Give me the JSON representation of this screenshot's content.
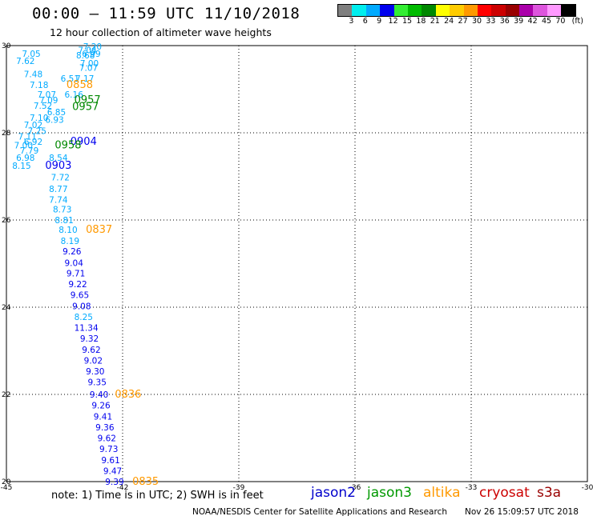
{
  "title": "00:00 – 11:59 UTC 11/10/2018",
  "subtitle": "12 hour collection of altimeter wave heights",
  "legend": {
    "colors": [
      "#7f7f7f",
      "#00eeee",
      "#00aaff",
      "#0000ee",
      "#33ee33",
      "#00bb00",
      "#008800",
      "#ffff00",
      "#ffcc00",
      "#ff9900",
      "#ff0000",
      "#cc0000",
      "#990000",
      "#aa00aa",
      "#dd55dd",
      "#ff99ff",
      "#000000"
    ],
    "labels": [
      "3",
      "6",
      "9",
      "12",
      "15",
      "18",
      "21",
      "24",
      "27",
      "30",
      "33",
      "36",
      "39",
      "42",
      "45",
      "70"
    ],
    "unit": "(ft)"
  },
  "axes": {
    "lon_ticks": [
      "-45",
      "-42",
      "-39",
      "-36",
      "-33",
      "-30"
    ],
    "lat_ticks": [
      "30",
      "28",
      "26",
      "24",
      "22",
      "20"
    ]
  },
  "observations": [
    {
      "text": "7.20",
      "lon": -43.02,
      "lat": 29.98,
      "color": "#00aaff"
    },
    {
      "text": "7.04",
      "lon": -43.15,
      "lat": 29.9,
      "color": "#00aaff"
    },
    {
      "text": "6.99",
      "lon": -43.05,
      "lat": 29.82,
      "color": "#00aaff"
    },
    {
      "text": "7.05",
      "lon": -44.6,
      "lat": 29.82,
      "color": "#00aaff"
    },
    {
      "text": "8.68",
      "lon": -43.2,
      "lat": 29.78,
      "color": "#00aaff"
    },
    {
      "text": "7.00",
      "lon": -43.1,
      "lat": 29.6,
      "color": "#00aaff"
    },
    {
      "text": "7.62",
      "lon": -44.75,
      "lat": 29.65,
      "color": "#00aaff"
    },
    {
      "text": "7.07",
      "lon": -43.12,
      "lat": 29.5,
      "color": "#00aaff"
    },
    {
      "text": "7.48",
      "lon": -44.55,
      "lat": 29.35,
      "color": "#00aaff"
    },
    {
      "text": "7.17",
      "lon": -43.22,
      "lat": 29.25,
      "color": "#00aaff"
    },
    {
      "text": "6.51",
      "lon": -43.6,
      "lat": 29.25,
      "color": "#00aaff"
    },
    {
      "text": "7.18",
      "lon": -44.4,
      "lat": 29.1,
      "color": "#00aaff"
    },
    {
      "text": "0858",
      "lon": -43.45,
      "lat": 29.1,
      "color": "#ff9900"
    },
    {
      "text": "7.07",
      "lon": -44.2,
      "lat": 28.88,
      "color": "#00aaff"
    },
    {
      "text": "6.16",
      "lon": -43.5,
      "lat": 28.88,
      "color": "#00aaff"
    },
    {
      "text": "7.09",
      "lon": -44.15,
      "lat": 28.75,
      "color": "#00aaff"
    },
    {
      "text": "0957",
      "lon": -43.25,
      "lat": 28.75,
      "color": "#008800"
    },
    {
      "text": "7.52",
      "lon": -44.3,
      "lat": 28.62,
      "color": "#00aaff"
    },
    {
      "text": "0957",
      "lon": -43.3,
      "lat": 28.6,
      "color": "#008800"
    },
    {
      "text": "6.85",
      "lon": -43.95,
      "lat": 28.48,
      "color": "#00aaff"
    },
    {
      "text": "7.10",
      "lon": -44.4,
      "lat": 28.35,
      "color": "#00aaff"
    },
    {
      "text": "6.93",
      "lon": -44.0,
      "lat": 28.3,
      "color": "#00aaff"
    },
    {
      "text": "7.02",
      "lon": -44.55,
      "lat": 28.18,
      "color": "#00aaff"
    },
    {
      "text": "7.25",
      "lon": -44.45,
      "lat": 28.05,
      "color": "#00aaff"
    },
    {
      "text": "7.11",
      "lon": -44.7,
      "lat": 27.92,
      "color": "#00aaff"
    },
    {
      "text": "6.92",
      "lon": -44.55,
      "lat": 27.8,
      "color": "#00aaff"
    },
    {
      "text": "0904",
      "lon": -43.35,
      "lat": 27.8,
      "color": "#0000ee"
    },
    {
      "text": "7.00",
      "lon": -44.8,
      "lat": 27.72,
      "color": "#00aaff"
    },
    {
      "text": "0958",
      "lon": -43.75,
      "lat": 27.72,
      "color": "#008800"
    },
    {
      "text": "7.79",
      "lon": -44.65,
      "lat": 27.6,
      "color": "#00aaff"
    },
    {
      "text": "6.98",
      "lon": -44.75,
      "lat": 27.43,
      "color": "#00aaff"
    },
    {
      "text": "8.54",
      "lon": -43.9,
      "lat": 27.43,
      "color": "#00aaff"
    },
    {
      "text": "8.15",
      "lon": -44.85,
      "lat": 27.25,
      "color": "#00aaff"
    },
    {
      "text": "0903",
      "lon": -44.0,
      "lat": 27.25,
      "color": "#0000ee"
    },
    {
      "text": "7.72",
      "lon": -43.85,
      "lat": 26.98,
      "color": "#00aaff"
    },
    {
      "text": "8.77",
      "lon": -43.9,
      "lat": 26.72,
      "color": "#00aaff"
    },
    {
      "text": "7.74",
      "lon": -43.9,
      "lat": 26.47,
      "color": "#00aaff"
    },
    {
      "text": "8.73",
      "lon": -43.8,
      "lat": 26.25,
      "color": "#00aaff"
    },
    {
      "text": "8.81",
      "lon": -43.75,
      "lat": 26.0,
      "color": "#00aaff"
    },
    {
      "text": "8.10",
      "lon": -43.65,
      "lat": 25.78,
      "color": "#00aaff"
    },
    {
      "text": "0837",
      "lon": -42.95,
      "lat": 25.78,
      "color": "#ff9900"
    },
    {
      "text": "8.19",
      "lon": -43.6,
      "lat": 25.52,
      "color": "#00aaff"
    },
    {
      "text": "9.26",
      "lon": -43.55,
      "lat": 25.28,
      "color": "#0000ee"
    },
    {
      "text": "9.04",
      "lon": -43.5,
      "lat": 25.02,
      "color": "#0000ee"
    },
    {
      "text": "9.71",
      "lon": -43.45,
      "lat": 24.78,
      "color": "#0000ee"
    },
    {
      "text": "9.22",
      "lon": -43.4,
      "lat": 24.53,
      "color": "#0000ee"
    },
    {
      "text": "9.65",
      "lon": -43.35,
      "lat": 24.28,
      "color": "#0000ee"
    },
    {
      "text": "9.08",
      "lon": -43.3,
      "lat": 24.03,
      "color": "#0000ee"
    },
    {
      "text": "8.25",
      "lon": -43.25,
      "lat": 23.78,
      "color": "#00aaff"
    },
    {
      "text": "11.34",
      "lon": -43.25,
      "lat": 23.53,
      "color": "#0000ee"
    },
    {
      "text": "9.32",
      "lon": -43.1,
      "lat": 23.28,
      "color": "#0000ee"
    },
    {
      "text": "9.62",
      "lon": -43.05,
      "lat": 23.03,
      "color": "#0000ee"
    },
    {
      "text": "9.02",
      "lon": -43.0,
      "lat": 22.78,
      "color": "#0000ee"
    },
    {
      "text": "9.30",
      "lon": -42.95,
      "lat": 22.53,
      "color": "#0000ee"
    },
    {
      "text": "9.35",
      "lon": -42.9,
      "lat": 22.28,
      "color": "#0000ee"
    },
    {
      "text": "9.40",
      "lon": -42.85,
      "lat": 22.0,
      "color": "#0000ee"
    },
    {
      "text": "0836",
      "lon": -42.2,
      "lat": 22.0,
      "color": "#ff9900"
    },
    {
      "text": "9.26",
      "lon": -42.8,
      "lat": 21.75,
      "color": "#0000ee"
    },
    {
      "text": "9.41",
      "lon": -42.75,
      "lat": 21.5,
      "color": "#0000ee"
    },
    {
      "text": "9.36",
      "lon": -42.7,
      "lat": 21.25,
      "color": "#0000ee"
    },
    {
      "text": "9.62",
      "lon": -42.65,
      "lat": 21.0,
      "color": "#0000ee"
    },
    {
      "text": "9.73",
      "lon": -42.6,
      "lat": 20.75,
      "color": "#0000ee"
    },
    {
      "text": "9.61",
      "lon": -42.55,
      "lat": 20.5,
      "color": "#0000ee"
    },
    {
      "text": "9.47",
      "lon": -42.5,
      "lat": 20.25,
      "color": "#0000ee"
    },
    {
      "text": "9.39",
      "lon": -42.45,
      "lat": 20.0,
      "color": "#0000ee"
    },
    {
      "text": "0835",
      "lon": -41.75,
      "lat": 20.0,
      "color": "#ff9900"
    }
  ],
  "note": "note: 1) Time is in UTC; 2) SWH is in feet",
  "satellites": [
    {
      "name": "jason2",
      "color": "#0000cc"
    },
    {
      "name": "jason3",
      "color": "#009900"
    },
    {
      "name": "altika",
      "color": "#ff9900"
    },
    {
      "name": "cryosat",
      "color": "#cc0000"
    },
    {
      "name": "s3a",
      "color": "#990000"
    }
  ],
  "footer": "NOAA/NESDIS Center for Satellite Applications and Research",
  "footer_date": "Nov 26 15:09:57 UTC 2018"
}
